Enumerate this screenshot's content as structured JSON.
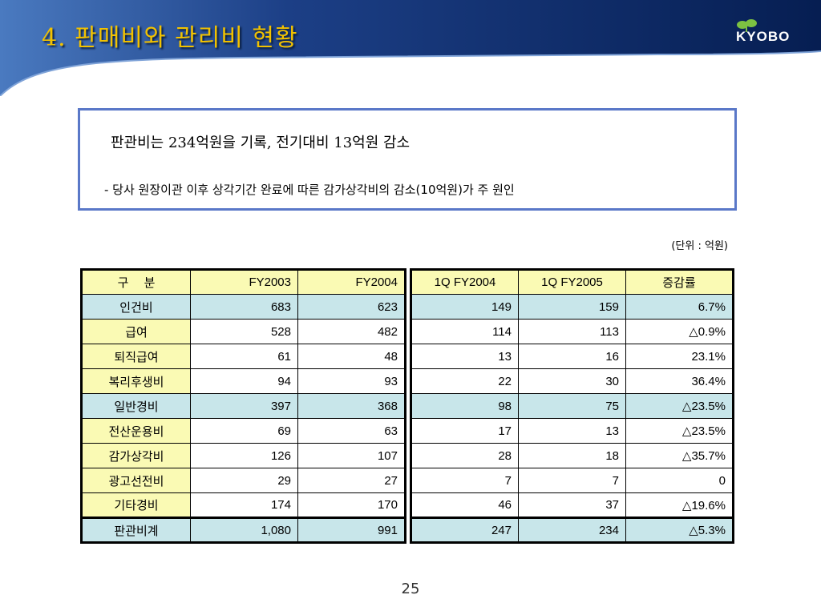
{
  "header": {
    "title": "4. 판매비와 관리비 현황",
    "logo_text": "KYOBO",
    "colors": {
      "band": "#0b2a66",
      "title": "#f2c200",
      "leaf": "#7cc242"
    }
  },
  "summary": {
    "main": "판관비는 234억원을 기록, 전기대비 13억원 감소",
    "sub": "- 당사 원장이관 이후 상각기간 완료에 따른 감가상각비의 감소(10억원)가 주 원인"
  },
  "unit": "(단위 : 억원)",
  "left_table": {
    "headers": [
      "구　 분",
      "FY2003",
      "FY2004"
    ],
    "rows": [
      {
        "label": "인건비",
        "fy2003": "683",
        "fy2004": "623"
      },
      {
        "label": "급여",
        "fy2003": "528",
        "fy2004": "482"
      },
      {
        "label": "퇴직급여",
        "fy2003": "61",
        "fy2004": "48"
      },
      {
        "label": "복리후생비",
        "fy2003": "94",
        "fy2004": "93"
      },
      {
        "label": "일반경비",
        "fy2003": "397",
        "fy2004": "368"
      },
      {
        "label": "전산운용비",
        "fy2003": "69",
        "fy2004": "63"
      },
      {
        "label": "감가상각비",
        "fy2003": "126",
        "fy2004": "107"
      },
      {
        "label": "광고선전비",
        "fy2003": "29",
        "fy2004": "27"
      },
      {
        "label": "기타경비",
        "fy2003": "174",
        "fy2004": "170"
      },
      {
        "label": "판관비계",
        "fy2003": "1,080",
        "fy2004": "991"
      }
    ]
  },
  "right_table": {
    "headers": [
      "1Q FY2004",
      "1Q FY2005",
      "증감률"
    ],
    "rows": [
      {
        "q2004": "149",
        "q2005": "159",
        "rate": "6.7%"
      },
      {
        "q2004": "114",
        "q2005": "113",
        "rate": "△0.9%"
      },
      {
        "q2004": "13",
        "q2005": "16",
        "rate": "23.1%"
      },
      {
        "q2004": "22",
        "q2005": "30",
        "rate": "36.4%"
      },
      {
        "q2004": "98",
        "q2005": "75",
        "rate": "△23.5%"
      },
      {
        "q2004": "17",
        "q2005": "13",
        "rate": "△23.5%"
      },
      {
        "q2004": "28",
        "q2005": "18",
        "rate": "△35.7%"
      },
      {
        "q2004": "7",
        "q2005": "7",
        "rate": "0"
      },
      {
        "q2004": "46",
        "q2005": "37",
        "rate": "△19.6%"
      },
      {
        "q2004": "247",
        "q2005": "234",
        "rate": "△5.3%"
      }
    ]
  },
  "page_number": "25"
}
